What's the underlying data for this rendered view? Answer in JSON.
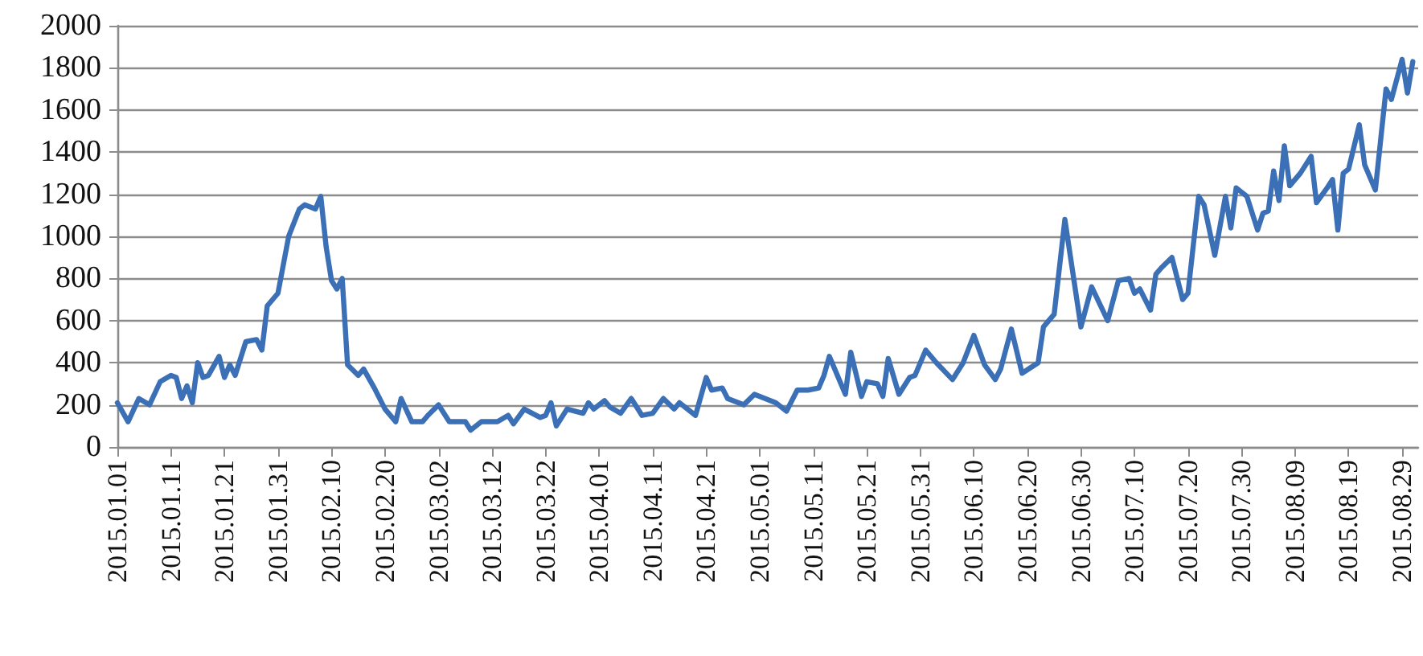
{
  "chart_data": {
    "type": "line",
    "x": [
      "2015-01-01",
      "2015-01-03",
      "2015-01-05",
      "2015-01-07",
      "2015-01-09",
      "2015-01-11",
      "2015-01-12",
      "2015-01-13",
      "2015-01-14",
      "2015-01-15",
      "2015-01-16",
      "2015-01-17",
      "2015-01-18",
      "2015-01-20",
      "2015-01-21",
      "2015-01-22",
      "2015-01-23",
      "2015-01-25",
      "2015-01-27",
      "2015-01-28",
      "2015-01-29",
      "2015-01-31",
      "2015-02-02",
      "2015-02-04",
      "2015-02-05",
      "2015-02-07",
      "2015-02-08",
      "2015-02-09",
      "2015-02-10",
      "2015-02-11",
      "2015-02-12",
      "2015-02-13",
      "2015-02-15",
      "2015-02-16",
      "2015-02-18",
      "2015-02-20",
      "2015-02-22",
      "2015-02-23",
      "2015-02-25",
      "2015-02-27",
      "2015-02-28",
      "2015-03-02",
      "2015-03-04",
      "2015-03-06",
      "2015-03-07",
      "2015-03-08",
      "2015-03-10",
      "2015-03-13",
      "2015-03-15",
      "2015-03-16",
      "2015-03-18",
      "2015-03-21",
      "2015-03-22",
      "2015-03-23",
      "2015-03-24",
      "2015-03-26",
      "2015-03-29",
      "2015-03-30",
      "2015-03-31",
      "2015-04-02",
      "2015-04-03",
      "2015-04-05",
      "2015-04-07",
      "2015-04-09",
      "2015-04-11",
      "2015-04-13",
      "2015-04-15",
      "2015-04-16",
      "2015-04-19",
      "2015-04-21",
      "2015-04-22",
      "2015-04-24",
      "2015-04-25",
      "2015-04-28",
      "2015-04-30",
      "2015-05-02",
      "2015-05-04",
      "2015-05-06",
      "2015-05-08",
      "2015-05-10",
      "2015-05-12",
      "2015-05-13",
      "2015-05-14",
      "2015-05-17",
      "2015-05-18",
      "2015-05-20",
      "2015-05-21",
      "2015-05-23",
      "2015-05-24",
      "2015-05-25",
      "2015-05-27",
      "2015-05-29",
      "2015-05-30",
      "2015-06-01",
      "2015-06-03",
      "2015-06-06",
      "2015-06-08",
      "2015-06-10",
      "2015-06-12",
      "2015-06-14",
      "2015-06-15",
      "2015-06-17",
      "2015-06-19",
      "2015-06-22",
      "2015-06-23",
      "2015-06-25",
      "2015-06-27",
      "2015-06-30",
      "2015-07-02",
      "2015-07-05",
      "2015-07-07",
      "2015-07-09",
      "2015-07-10",
      "2015-07-11",
      "2015-07-13",
      "2015-07-14",
      "2015-07-15",
      "2015-07-17",
      "2015-07-19",
      "2015-07-20",
      "2015-07-22",
      "2015-07-23",
      "2015-07-25",
      "2015-07-26",
      "2015-07-27",
      "2015-07-28",
      "2015-07-29",
      "2015-07-31",
      "2015-08-02",
      "2015-08-03",
      "2015-08-04",
      "2015-08-05",
      "2015-08-06",
      "2015-08-07",
      "2015-08-08",
      "2015-08-10",
      "2015-08-12",
      "2015-08-13",
      "2015-08-15",
      "2015-08-16",
      "2015-08-17",
      "2015-08-18",
      "2015-08-19",
      "2015-08-21",
      "2015-08-22",
      "2015-08-24",
      "2015-08-26",
      "2015-08-27",
      "2015-08-29",
      "2015-08-30",
      "2015-08-31"
    ],
    "series": [
      {
        "color": "#3b6fb6",
        "values": [
          210,
          120,
          230,
          200,
          310,
          340,
          330,
          230,
          290,
          210,
          400,
          330,
          340,
          430,
          330,
          390,
          340,
          500,
          510,
          460,
          670,
          730,
          1000,
          1130,
          1150,
          1130,
          1190,
          950,
          790,
          750,
          800,
          390,
          340,
          370,
          280,
          180,
          120,
          230,
          120,
          120,
          150,
          200,
          120,
          120,
          120,
          80,
          120,
          120,
          150,
          110,
          180,
          140,
          150,
          210,
          100,
          180,
          160,
          210,
          180,
          220,
          190,
          160,
          230,
          150,
          160,
          230,
          180,
          210,
          150,
          330,
          270,
          280,
          230,
          200,
          250,
          230,
          210,
          170,
          270,
          270,
          280,
          340,
          430,
          250,
          450,
          240,
          310,
          300,
          240,
          420,
          250,
          330,
          340,
          460,
          400,
          320,
          400,
          530,
          390,
          320,
          370,
          560,
          350,
          400,
          570,
          630,
          1080,
          570,
          760,
          600,
          790,
          800,
          730,
          750,
          650,
          820,
          850,
          900,
          700,
          730,
          1190,
          1150,
          910,
          1050,
          1190,
          1040,
          1230,
          1190,
          1030,
          1110,
          1120,
          1310,
          1170,
          1430,
          1240,
          1300,
          1380,
          1160,
          1230,
          1270,
          1030,
          1300,
          1320,
          1530,
          1340,
          1220,
          1700,
          1650,
          1840,
          1680,
          1830
        ]
      }
    ],
    "xlim": [
      "2015-01-01",
      "2015-09-01"
    ],
    "xticks": [
      {
        "value": "2015-01-01",
        "label": "2015.01.01"
      },
      {
        "value": "2015-01-11",
        "label": "2015.01.11"
      },
      {
        "value": "2015-01-21",
        "label": "2015.01.21"
      },
      {
        "value": "2015-01-31",
        "label": "2015.01.31"
      },
      {
        "value": "2015-02-10",
        "label": "2015.02.10"
      },
      {
        "value": "2015-02-20",
        "label": "2015.02.20"
      },
      {
        "value": "2015-03-02",
        "label": "2015.03.02"
      },
      {
        "value": "2015-03-12",
        "label": "2015.03.12"
      },
      {
        "value": "2015-03-22",
        "label": "2015.03.22"
      },
      {
        "value": "2015-04-01",
        "label": "2015.04.01"
      },
      {
        "value": "2015-04-11",
        "label": "2015.04.11"
      },
      {
        "value": "2015-04-21",
        "label": "2015.04.21"
      },
      {
        "value": "2015-05-01",
        "label": "2015.05.01"
      },
      {
        "value": "2015-05-11",
        "label": "2015.05.11"
      },
      {
        "value": "2015-05-21",
        "label": "2015.05.21"
      },
      {
        "value": "2015-05-31",
        "label": "2015.05.31"
      },
      {
        "value": "2015-06-10",
        "label": "2015.06.10"
      },
      {
        "value": "2015-06-20",
        "label": "2015.06.20"
      },
      {
        "value": "2015-06-30",
        "label": "2015.06.30"
      },
      {
        "value": "2015-07-10",
        "label": "2015.07.10"
      },
      {
        "value": "2015-07-20",
        "label": "2015.07.20"
      },
      {
        "value": "2015-07-30",
        "label": "2015.07.30"
      },
      {
        "value": "2015-08-09",
        "label": "2015.08.09"
      },
      {
        "value": "2015-08-19",
        "label": "2015.08.19"
      },
      {
        "value": "2015-08-29",
        "label": "2015.08.29"
      }
    ],
    "ylim": [
      0,
      2000
    ],
    "yticks": [
      0,
      200,
      400,
      600,
      800,
      1000,
      1200,
      1400,
      1600,
      1800,
      2000
    ],
    "grid": "y",
    "marker": "none",
    "line_style": "solid"
  }
}
